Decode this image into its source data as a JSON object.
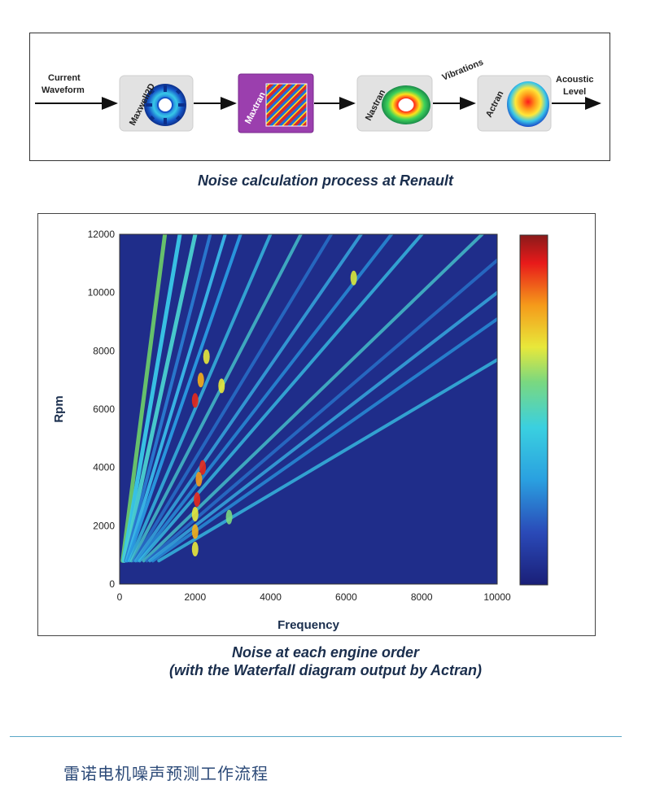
{
  "process": {
    "input_label_1": "Current",
    "input_label_2": "Waveform",
    "vibrations_label": "Vibrations",
    "output_label_1": "Acoustic",
    "output_label_2": "Level",
    "tools": [
      {
        "name": "Maxwell2D"
      },
      {
        "name": "Maxtran"
      },
      {
        "name": "Nastran"
      },
      {
        "name": "Actran"
      }
    ],
    "colors": {
      "maxtran_box": "#9b3fae",
      "tool_box": "#e2e2e2"
    }
  },
  "captions": {
    "process": "Noise calculation process at Renault",
    "waterfall_line1": "Noise at each engine order",
    "waterfall_line2": "(with the Waterfall diagram output by Actran)"
  },
  "chart_data": {
    "type": "heatmap",
    "xlabel": "Frequency",
    "ylabel": "Rpm",
    "xlim": [
      0,
      10000
    ],
    "ylim": [
      0,
      12000
    ],
    "x_ticks": [
      "0",
      "2000",
      "4000",
      "6000",
      "8000",
      "10000"
    ],
    "y_ticks": [
      "0",
      "2000",
      "4000",
      "6000",
      "8000",
      "10000",
      "12000"
    ],
    "background_color": "#1f2d8a",
    "colorbar": true,
    "order_slopes_hz_per_rpm": [
      0.1,
      0.133,
      0.167,
      0.2,
      0.233,
      0.267,
      0.333,
      0.4,
      0.467,
      0.533,
      0.6,
      0.667,
      0.8,
      0.9,
      1.0,
      1.1,
      1.3
    ]
  },
  "footer": {
    "text": "雷诺电机噪声预测工作流程"
  }
}
